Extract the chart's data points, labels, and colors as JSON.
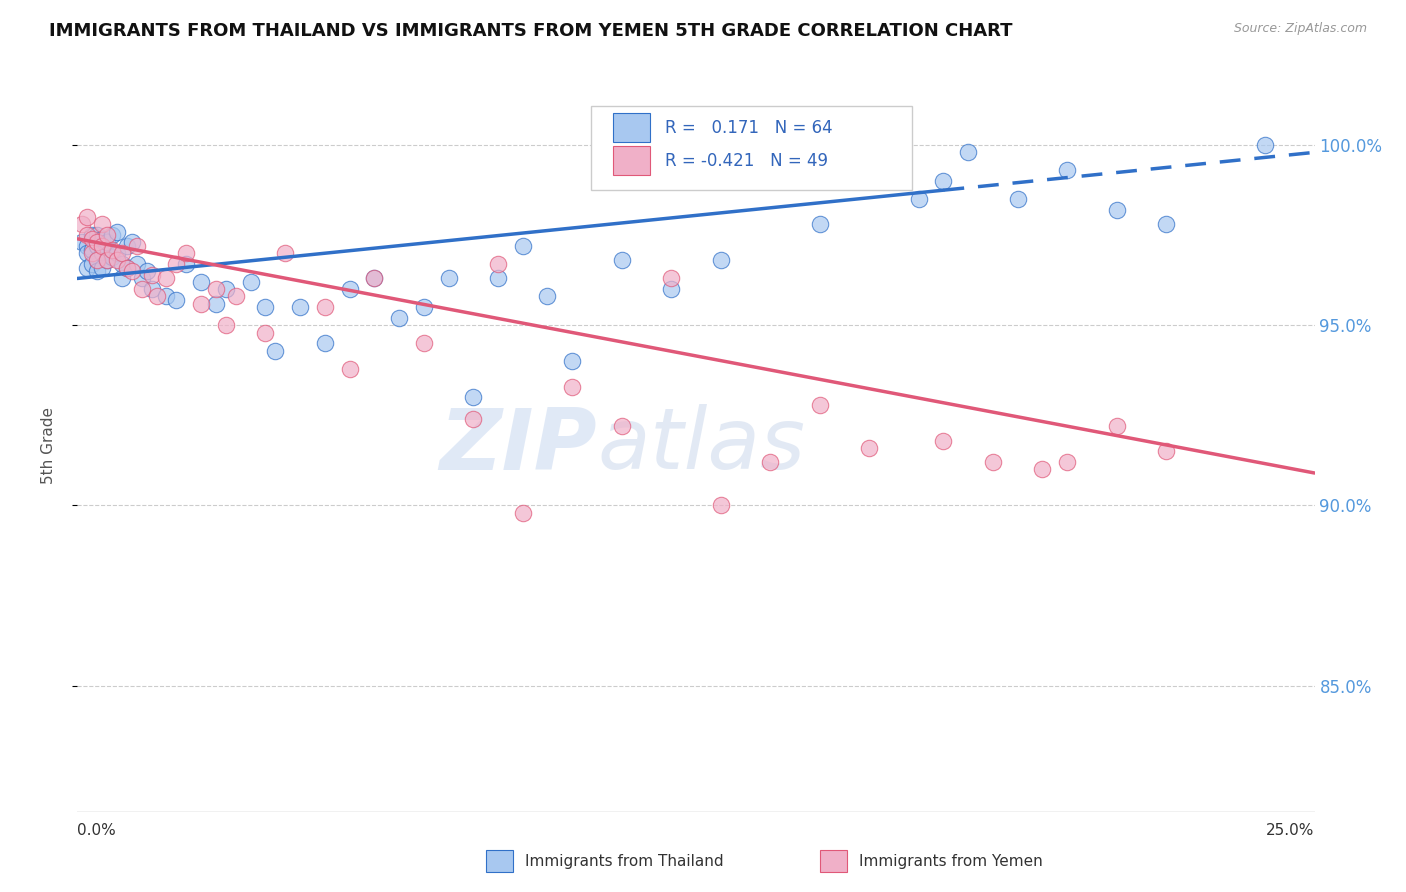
{
  "title": "IMMIGRANTS FROM THAILAND VS IMMIGRANTS FROM YEMEN 5TH GRADE CORRELATION CHART",
  "source": "Source: ZipAtlas.com",
  "ylabel": "5th Grade",
  "ytick_labels": [
    "85.0%",
    "90.0%",
    "95.0%",
    "100.0%"
  ],
  "ytick_values": [
    0.85,
    0.9,
    0.95,
    1.0
  ],
  "xlim": [
    0.0,
    0.25
  ],
  "ylim": [
    0.815,
    1.018
  ],
  "r_thailand": 0.171,
  "n_thailand": 64,
  "r_yemen": -0.421,
  "n_yemen": 49,
  "color_thailand": "#A8C8F0",
  "color_yemen": "#F0B0C8",
  "color_trendline_thailand": "#3070C8",
  "color_trendline_yemen": "#E05878",
  "watermark_zip": "ZIP",
  "watermark_atlas": "atlas",
  "thailand_x": [
    0.001,
    0.002,
    0.002,
    0.002,
    0.003,
    0.003,
    0.003,
    0.004,
    0.004,
    0.004,
    0.004,
    0.005,
    0.005,
    0.005,
    0.006,
    0.006,
    0.007,
    0.007,
    0.008,
    0.008,
    0.009,
    0.009,
    0.01,
    0.01,
    0.011,
    0.012,
    0.013,
    0.014,
    0.015,
    0.018,
    0.02,
    0.022,
    0.025,
    0.028,
    0.03,
    0.035,
    0.038,
    0.04,
    0.045,
    0.05,
    0.055,
    0.06,
    0.065,
    0.07,
    0.075,
    0.08,
    0.085,
    0.09,
    0.095,
    0.1,
    0.11,
    0.12,
    0.13,
    0.14,
    0.15,
    0.16,
    0.17,
    0.175,
    0.18,
    0.19,
    0.2,
    0.21,
    0.22,
    0.24
  ],
  "thailand_y": [
    0.973,
    0.972,
    0.97,
    0.966,
    0.975,
    0.971,
    0.967,
    0.975,
    0.972,
    0.968,
    0.965,
    0.974,
    0.97,
    0.966,
    0.973,
    0.968,
    0.975,
    0.969,
    0.976,
    0.97,
    0.967,
    0.963,
    0.972,
    0.966,
    0.973,
    0.967,
    0.963,
    0.965,
    0.96,
    0.958,
    0.957,
    0.967,
    0.962,
    0.956,
    0.96,
    0.962,
    0.955,
    0.943,
    0.955,
    0.945,
    0.96,
    0.963,
    0.952,
    0.955,
    0.963,
    0.93,
    0.963,
    0.972,
    0.958,
    0.94,
    0.968,
    0.96,
    0.968,
    0.992,
    0.978,
    0.995,
    0.985,
    0.99,
    0.998,
    0.985,
    0.993,
    0.982,
    0.978,
    1.0
  ],
  "yemen_x": [
    0.001,
    0.002,
    0.002,
    0.003,
    0.003,
    0.004,
    0.004,
    0.005,
    0.005,
    0.006,
    0.006,
    0.007,
    0.008,
    0.009,
    0.01,
    0.011,
    0.012,
    0.013,
    0.015,
    0.016,
    0.018,
    0.02,
    0.022,
    0.025,
    0.028,
    0.03,
    0.032,
    0.038,
    0.042,
    0.05,
    0.055,
    0.06,
    0.07,
    0.08,
    0.085,
    0.09,
    0.1,
    0.11,
    0.12,
    0.13,
    0.14,
    0.15,
    0.16,
    0.175,
    0.185,
    0.195,
    0.2,
    0.21,
    0.22
  ],
  "yemen_y": [
    0.978,
    0.98,
    0.975,
    0.974,
    0.97,
    0.973,
    0.968,
    0.978,
    0.972,
    0.975,
    0.968,
    0.971,
    0.968,
    0.97,
    0.966,
    0.965,
    0.972,
    0.96,
    0.964,
    0.958,
    0.963,
    0.967,
    0.97,
    0.956,
    0.96,
    0.95,
    0.958,
    0.948,
    0.97,
    0.955,
    0.938,
    0.963,
    0.945,
    0.924,
    0.967,
    0.898,
    0.933,
    0.922,
    0.963,
    0.9,
    0.912,
    0.928,
    0.916,
    0.918,
    0.912,
    0.91,
    0.912,
    0.922,
    0.915
  ],
  "trendline_thailand_x0": 0.0,
  "trendline_thailand_y0": 0.963,
  "trendline_thailand_x1": 0.25,
  "trendline_thailand_y1": 0.998,
  "trendline_solid_end": 0.175,
  "trendline_yemen_x0": 0.0,
  "trendline_yemen_y0": 0.974,
  "trendline_yemen_x1": 0.25,
  "trendline_yemen_y1": 0.909
}
